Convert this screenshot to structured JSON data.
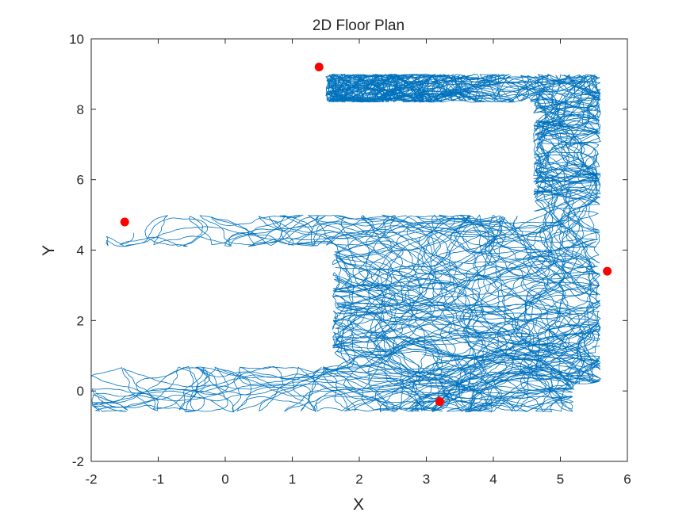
{
  "chart_data": {
    "type": "line",
    "title": "2D Floor Plan",
    "xlabel": "X",
    "ylabel": "Y",
    "xlim": [
      -2,
      6
    ],
    "ylim": [
      -2,
      10
    ],
    "x_ticks": [
      -2,
      -1,
      0,
      1,
      2,
      3,
      4,
      5,
      6
    ],
    "y_ticks": [
      -2,
      0,
      2,
      4,
      6,
      8,
      10
    ],
    "x_tick_labels": [
      "-2",
      "-1",
      "0",
      "1",
      "2",
      "3",
      "4",
      "5",
      "6"
    ],
    "y_tick_labels": [
      "-2",
      "0",
      "2",
      "4",
      "6",
      "8",
      "10"
    ],
    "grid": false,
    "box": true,
    "colors": {
      "trajectory": "#0072BD",
      "anchors": "#FF0000",
      "axes": "#262626"
    },
    "corridors": [
      {
        "x": [
          -1.8,
          5.4
        ],
        "y": [
          4.1,
          5.0
        ]
      },
      {
        "x": [
          -2.0,
          5.2
        ],
        "y": [
          -0.6,
          0.7
        ]
      },
      {
        "x": [
          1.6,
          5.0
        ],
        "y": [
          0.4,
          4.6
        ]
      },
      {
        "x": [
          4.6,
          5.6
        ],
        "y": [
          0.2,
          9.0
        ]
      },
      {
        "x": [
          1.5,
          5.0
        ],
        "y": [
          8.2,
          9.0
        ]
      }
    ],
    "anchors": [
      {
        "x": 1.4,
        "y": 9.2
      },
      {
        "x": -1.5,
        "y": 4.8
      },
      {
        "x": 5.7,
        "y": 3.4
      },
      {
        "x": 3.2,
        "y": -0.3
      }
    ]
  }
}
